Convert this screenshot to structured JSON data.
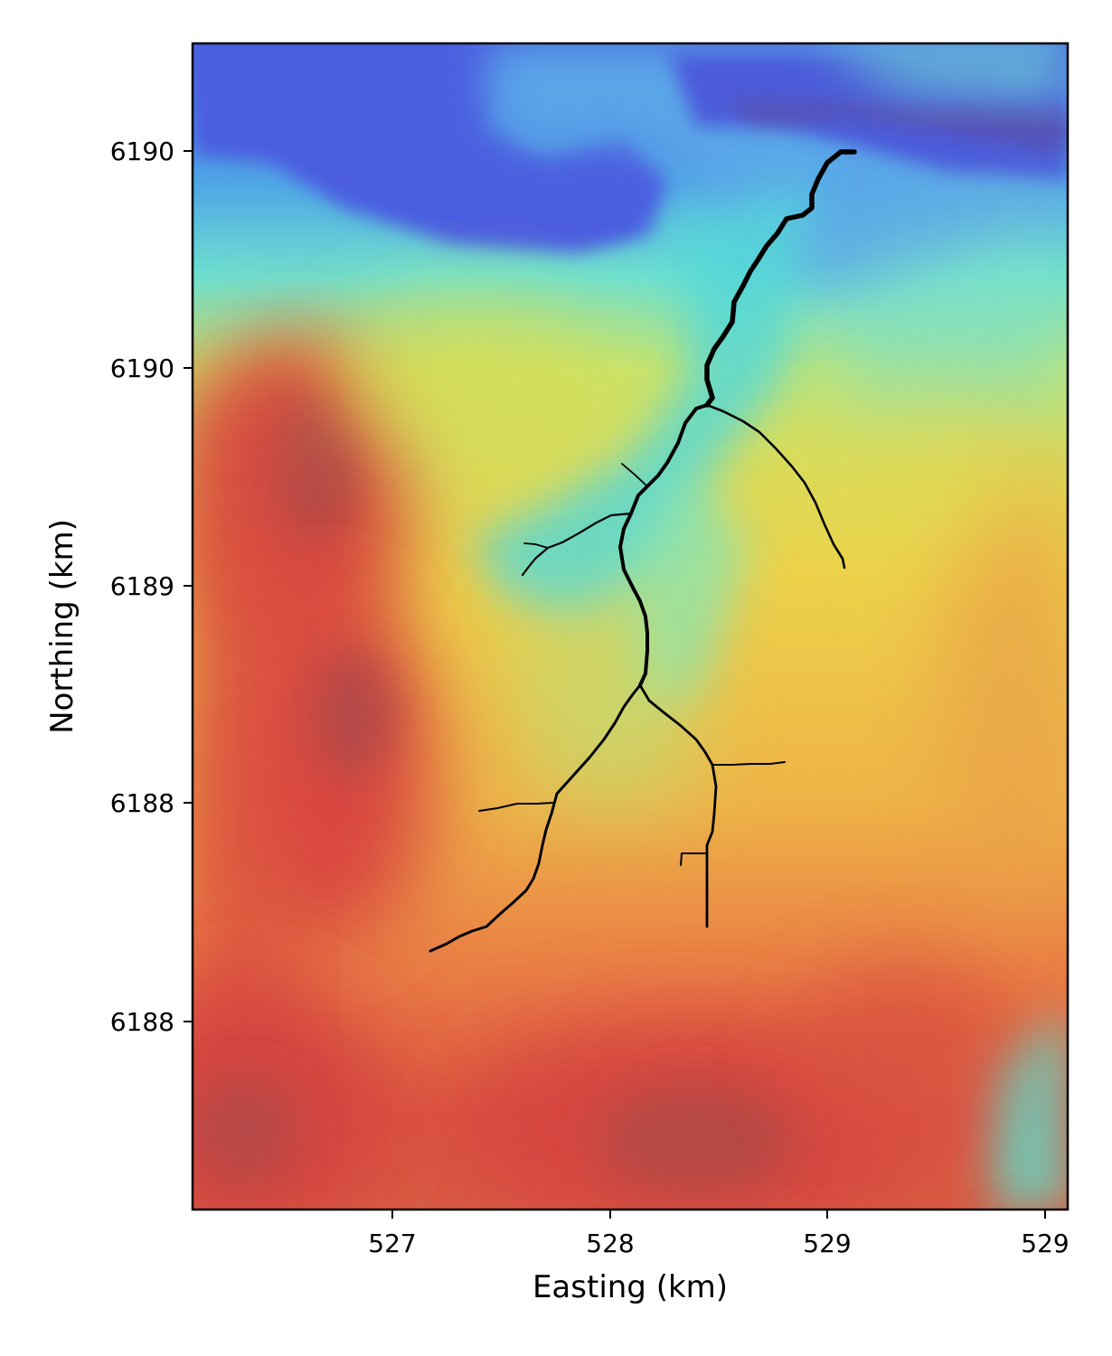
{
  "map": {
    "type": "elevation-hillshade-map",
    "colormap": "jet",
    "xlabel": "Easting (km)",
    "ylabel": "Northing (km)",
    "x_ticks": [
      "527",
      "528",
      "529",
      "529"
    ],
    "y_ticks": [
      "6190",
      "6190",
      "6189",
      "6188",
      "6188"
    ],
    "feature": "stream-network",
    "colors": {
      "low": "#3f52e0",
      "mid": "#e5e04a",
      "high": "#d44a3c",
      "peak": "#b84840",
      "stream": "#000000"
    }
  }
}
